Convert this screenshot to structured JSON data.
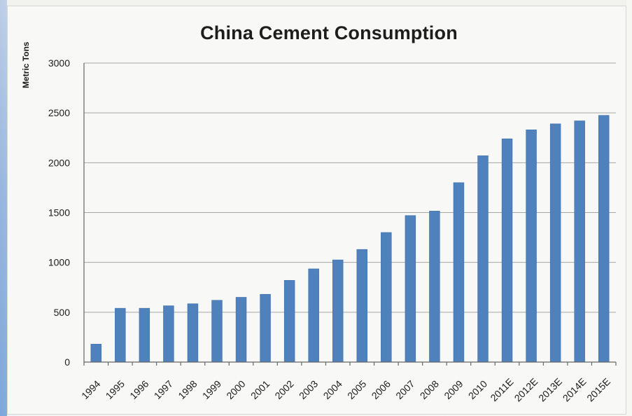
{
  "chart_data": {
    "type": "bar",
    "title": "China Cement Consumption",
    "ylabel": "Metric Tons",
    "xlabel": "",
    "categories": [
      "1994",
      "1995",
      "1996",
      "1997",
      "1998",
      "1999",
      "2000",
      "2001",
      "2002",
      "2003",
      "2004",
      "2005",
      "2006",
      "2007",
      "2008",
      "2009",
      "2010",
      "2011E",
      "2012E",
      "2013E",
      "2014E",
      "2015E"
    ],
    "values": [
      180,
      540,
      540,
      565,
      585,
      620,
      650,
      680,
      820,
      935,
      1025,
      1130,
      1300,
      1470,
      1515,
      1800,
      2070,
      2240,
      2330,
      2390,
      2420,
      2475
    ],
    "ylim": [
      0,
      3000
    ],
    "yticks": [
      0,
      500,
      1000,
      1500,
      2000,
      2500,
      3000
    ],
    "grid": true,
    "bar_color": "#4f81bd"
  }
}
